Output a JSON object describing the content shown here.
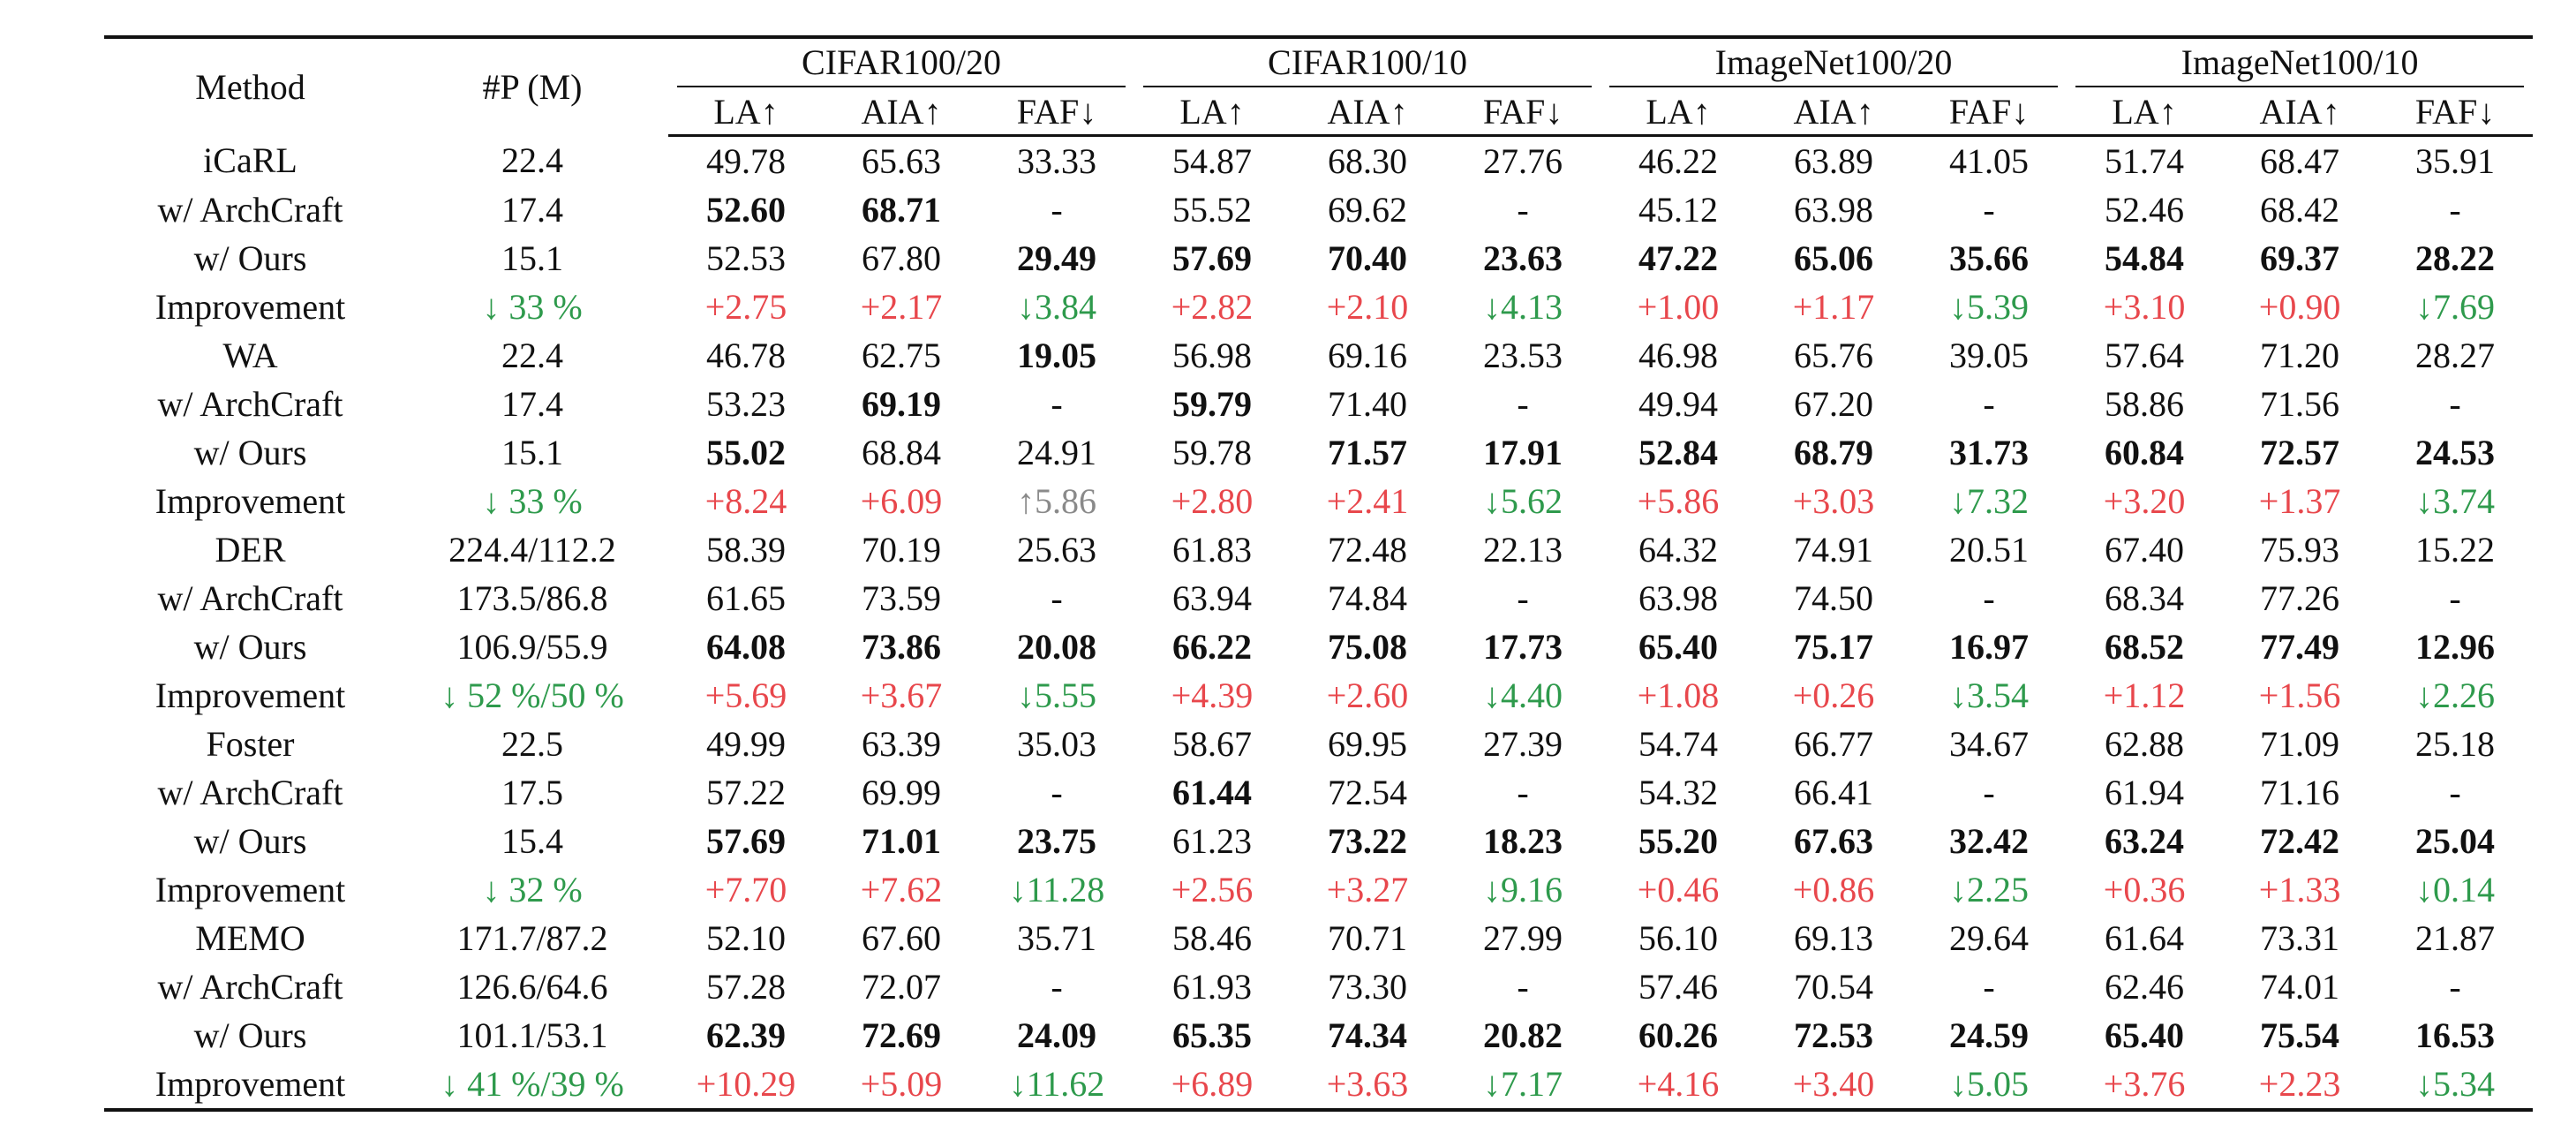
{
  "table": {
    "header": {
      "method": "Method",
      "params": "#P (M)",
      "groups": [
        {
          "name": "CIFAR100/20",
          "metrics": [
            "LA↑",
            "AIA↑",
            "FAF↓"
          ]
        },
        {
          "name": "CIFAR100/10",
          "metrics": [
            "LA↑",
            "AIA↑",
            "FAF↓"
          ]
        },
        {
          "name": "ImageNet100/20",
          "metrics": [
            "LA↑",
            "AIA↑",
            "FAF↓"
          ]
        },
        {
          "name": "ImageNet100/10",
          "metrics": [
            "LA↑",
            "AIA↑",
            "FAF↓"
          ]
        }
      ]
    },
    "rows": [
      {
        "method": "iCaRL",
        "params": "22.4",
        "values": [
          "49.78",
          "65.63",
          "33.33",
          "54.87",
          "68.30",
          "27.76",
          "46.22",
          "63.89",
          "41.05",
          "51.74",
          "68.47",
          "35.91"
        ]
      },
      {
        "method": "w/ ArchCraft",
        "params": "17.4",
        "values": [
          "52.60",
          "68.71",
          "-",
          "55.52",
          "69.62",
          "-",
          "45.12",
          "63.98",
          "-",
          "52.46",
          "68.42",
          "-"
        ],
        "bold": [
          0,
          1
        ]
      },
      {
        "method": "w/ Ours",
        "params": "15.1",
        "values": [
          "52.53",
          "67.80",
          "29.49",
          "57.69",
          "70.40",
          "23.63",
          "47.22",
          "65.06",
          "35.66",
          "54.84",
          "69.37",
          "28.22"
        ],
        "bold": [
          2,
          3,
          4,
          5,
          6,
          7,
          8,
          9,
          10,
          11
        ]
      },
      {
        "method": "Improvement",
        "params": "↓ 33 %",
        "values": [
          "+2.75",
          "+2.17",
          "↓3.84",
          "+2.82",
          "+2.10",
          "↓4.13",
          "+1.00",
          "+1.17",
          "↓5.39",
          "+3.10",
          "+0.90",
          "↓7.69"
        ]
      },
      {
        "method": "WA",
        "params": "22.4",
        "values": [
          "46.78",
          "62.75",
          "19.05",
          "56.98",
          "69.16",
          "23.53",
          "46.98",
          "65.76",
          "39.05",
          "57.64",
          "71.20",
          "28.27"
        ],
        "bold": [
          2
        ]
      },
      {
        "method": "w/ ArchCraft",
        "params": "17.4",
        "values": [
          "53.23",
          "69.19",
          "-",
          "59.79",
          "71.40",
          "-",
          "49.94",
          "67.20",
          "-",
          "58.86",
          "71.56",
          "-"
        ],
        "bold": [
          1,
          3
        ]
      },
      {
        "method": "w/ Ours",
        "params": "15.1",
        "values": [
          "55.02",
          "68.84",
          "24.91",
          "59.78",
          "71.57",
          "17.91",
          "52.84",
          "68.79",
          "31.73",
          "60.84",
          "72.57",
          "24.53"
        ],
        "bold": [
          0,
          4,
          5,
          6,
          7,
          8,
          9,
          10,
          11
        ]
      },
      {
        "method": "Improvement",
        "params": "↓ 33 %",
        "values": [
          "+8.24",
          "+6.09",
          "↑5.86",
          "+2.80",
          "+2.41",
          "↓5.62",
          "+5.86",
          "+3.03",
          "↓7.32",
          "+3.20",
          "+1.37",
          "↓3.74"
        ]
      },
      {
        "method": "DER",
        "params": "224.4/112.2",
        "values": [
          "58.39",
          "70.19",
          "25.63",
          "61.83",
          "72.48",
          "22.13",
          "64.32",
          "74.91",
          "20.51",
          "67.40",
          "75.93",
          "15.22"
        ]
      },
      {
        "method": "w/ ArchCraft",
        "params": "173.5/86.8",
        "values": [
          "61.65",
          "73.59",
          "-",
          "63.94",
          "74.84",
          "-",
          "63.98",
          "74.50",
          "-",
          "68.34",
          "77.26",
          "-"
        ]
      },
      {
        "method": "w/ Ours",
        "params": "106.9/55.9",
        "values": [
          "64.08",
          "73.86",
          "20.08",
          "66.22",
          "75.08",
          "17.73",
          "65.40",
          "75.17",
          "16.97",
          "68.52",
          "77.49",
          "12.96"
        ],
        "bold": [
          0,
          1,
          2,
          3,
          4,
          5,
          6,
          7,
          8,
          9,
          10,
          11
        ]
      },
      {
        "method": "Improvement",
        "params": "↓ 52 %/50 %",
        "values": [
          "+5.69",
          "+3.67",
          "↓5.55",
          "+4.39",
          "+2.60",
          "↓4.40",
          "+1.08",
          "+0.26",
          "↓3.54",
          "+1.12",
          "+1.56",
          "↓2.26"
        ]
      },
      {
        "method": "Foster",
        "params": "22.5",
        "values": [
          "49.99",
          "63.39",
          "35.03",
          "58.67",
          "69.95",
          "27.39",
          "54.74",
          "66.77",
          "34.67",
          "62.88",
          "71.09",
          "25.18"
        ]
      },
      {
        "method": "w/ ArchCraft",
        "params": "17.5",
        "values": [
          "57.22",
          "69.99",
          "-",
          "61.44",
          "72.54",
          "-",
          "54.32",
          "66.41",
          "-",
          "61.94",
          "71.16",
          "-"
        ],
        "bold": [
          3
        ]
      },
      {
        "method": "w/ Ours",
        "params": "15.4",
        "values": [
          "57.69",
          "71.01",
          "23.75",
          "61.23",
          "73.22",
          "18.23",
          "55.20",
          "67.63",
          "32.42",
          "63.24",
          "72.42",
          "25.04"
        ],
        "bold": [
          0,
          1,
          2,
          4,
          5,
          6,
          7,
          8,
          9,
          10,
          11
        ]
      },
      {
        "method": "Improvement",
        "params": "↓ 32 %",
        "values": [
          "+7.70",
          "+7.62",
          "↓11.28",
          "+2.56",
          "+3.27",
          "↓9.16",
          "+0.46",
          "+0.86",
          "↓2.25",
          "+0.36",
          "+1.33",
          "↓0.14"
        ]
      },
      {
        "method": "MEMO",
        "params": "171.7/87.2",
        "values": [
          "52.10",
          "67.60",
          "35.71",
          "58.46",
          "70.71",
          "27.99",
          "56.10",
          "69.13",
          "29.64",
          "61.64",
          "73.31",
          "21.87"
        ]
      },
      {
        "method": "w/ ArchCraft",
        "params": "126.6/64.6",
        "values": [
          "57.28",
          "72.07",
          "-",
          "61.93",
          "73.30",
          "-",
          "57.46",
          "70.54",
          "-",
          "62.46",
          "74.01",
          "-"
        ]
      },
      {
        "method": "w/ Ours",
        "params": "101.1/53.1",
        "values": [
          "62.39",
          "72.69",
          "24.09",
          "65.35",
          "74.34",
          "20.82",
          "60.26",
          "72.53",
          "24.59",
          "65.40",
          "75.54",
          "16.53"
        ],
        "bold": [
          0,
          1,
          2,
          3,
          4,
          5,
          6,
          7,
          8,
          9,
          10,
          11
        ]
      },
      {
        "method": "Improvement",
        "params": "↓ 41 %/39 %",
        "values": [
          "+10.29",
          "+5.09",
          "↓11.62",
          "+6.89",
          "+3.63",
          "↓7.17",
          "+4.16",
          "+3.40",
          "↓5.05",
          "+3.76",
          "+2.23",
          "↓5.34"
        ]
      }
    ]
  }
}
